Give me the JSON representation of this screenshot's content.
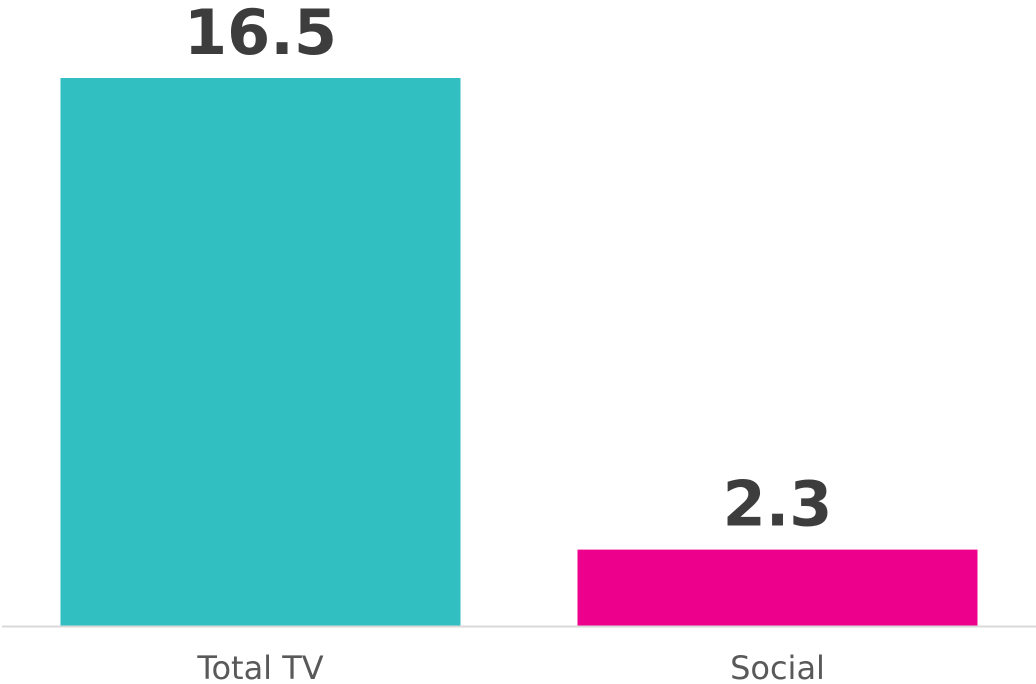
{
  "chart_data": {
    "type": "bar",
    "categories": [
      "Total TV",
      "Social"
    ],
    "values": [
      16.5,
      2.3
    ],
    "data_labels": [
      "16.5",
      "2.3"
    ],
    "colors": [
      "#31bfc1",
      "#ec008c"
    ],
    "title": "",
    "xlabel": "",
    "ylabel": "",
    "ylim": [
      0,
      16.5
    ],
    "grid": false,
    "legend": "none",
    "axis_color": "#d9d9d9"
  }
}
